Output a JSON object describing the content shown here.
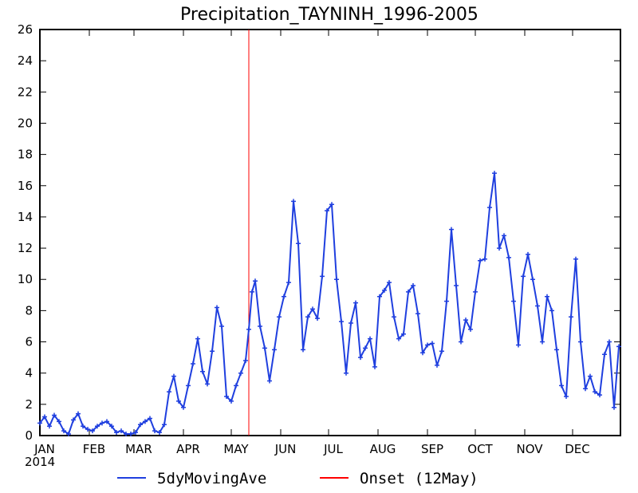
{
  "chart_data": {
    "type": "line",
    "title": "Precipitation_TAYNINH_1996-2005",
    "xlabel": "",
    "ylabel": "",
    "ylim": [
      0,
      26
    ],
    "yticks": [
      0,
      2,
      4,
      6,
      8,
      10,
      12,
      14,
      16,
      18,
      20,
      22,
      24,
      26
    ],
    "x_unit": "day of year",
    "xlim": [
      1,
      365
    ],
    "month_ticks": [
      "JAN",
      "FEB",
      "MAR",
      "APR",
      "MAY",
      "JUN",
      "JUL",
      "AUG",
      "SEP",
      "OCT",
      "NOV",
      "DEC"
    ],
    "year_label": "2014",
    "grid": false,
    "legend_placement": "bottom",
    "series": [
      {
        "name": "5dyMovingAve",
        "color": "#1f3fdf",
        "x": [
          1,
          4,
          7,
          10,
          13,
          16,
          19,
          22,
          25,
          28,
          31,
          34,
          37,
          40,
          43,
          46,
          49,
          52,
          55,
          58,
          61,
          64,
          67,
          70,
          73,
          76,
          79,
          82,
          85,
          88,
          91,
          94,
          97,
          100,
          103,
          106,
          109,
          112,
          115,
          118,
          121,
          124,
          127,
          130,
          132,
          134,
          136,
          139,
          142,
          145,
          148,
          151,
          154,
          157,
          160,
          163,
          166,
          169,
          172,
          175,
          178,
          181,
          184,
          187,
          190,
          193,
          196,
          199,
          202,
          205,
          208,
          211,
          214,
          217,
          220,
          223,
          226,
          229,
          232,
          235,
          238,
          241,
          244,
          247,
          250,
          253,
          256,
          259,
          262,
          265,
          268,
          271,
          274,
          277,
          280,
          283,
          286,
          289,
          292,
          295,
          298,
          301,
          304,
          307,
          310,
          313,
          316,
          319,
          322,
          325,
          328,
          331,
          334,
          337,
          340,
          343,
          346,
          349,
          352,
          355,
          358,
          361,
          364
        ],
        "values": [
          0.8,
          1.2,
          0.6,
          1.3,
          0.9,
          0.3,
          0.1,
          1.0,
          1.4,
          0.6,
          0.4,
          0.3,
          0.6,
          0.8,
          0.9,
          0.6,
          0.2,
          0.3,
          0.1,
          0.1,
          0.2,
          0.7,
          0.9,
          1.1,
          0.3,
          0.2,
          0.7,
          2.8,
          3.8,
          2.2,
          1.8,
          3.2,
          4.6,
          6.2,
          4.1,
          3.3,
          5.4,
          8.2,
          7.0,
          2.5,
          2.2,
          3.2,
          4.0,
          4.8,
          6.8,
          9.2,
          9.9,
          7.0,
          5.6,
          3.5,
          5.5,
          7.6,
          8.9,
          9.8,
          15.0,
          12.3,
          5.5,
          7.6,
          8.1,
          7.5,
          10.2,
          14.4,
          14.8,
          10.0,
          7.3,
          4.0,
          7.2,
          8.5,
          5.0,
          5.6,
          6.2,
          4.4,
          8.9,
          9.3,
          9.8,
          7.6,
          6.2,
          6.5,
          9.2,
          9.6,
          7.8,
          5.3,
          5.8,
          5.9,
          4.5,
          5.4,
          8.6,
          13.2,
          9.6,
          6.0,
          7.4,
          6.8,
          9.2,
          11.2,
          11.3,
          14.6,
          16.8,
          12.0,
          12.8,
          11.4,
          8.6,
          5.8,
          10.2,
          11.6,
          10.0,
          8.3,
          6.0,
          8.9,
          8.0,
          5.5,
          3.2,
          2.5,
          7.6,
          11.3,
          6.0,
          3.0,
          3.8,
          2.8,
          2.6,
          5.2,
          6.0,
          1.8,
          5.7
        ]
      },
      {
        "name": "Onset (12May)",
        "color": "#ff0000",
        "x": [
          132
        ]
      }
    ]
  }
}
